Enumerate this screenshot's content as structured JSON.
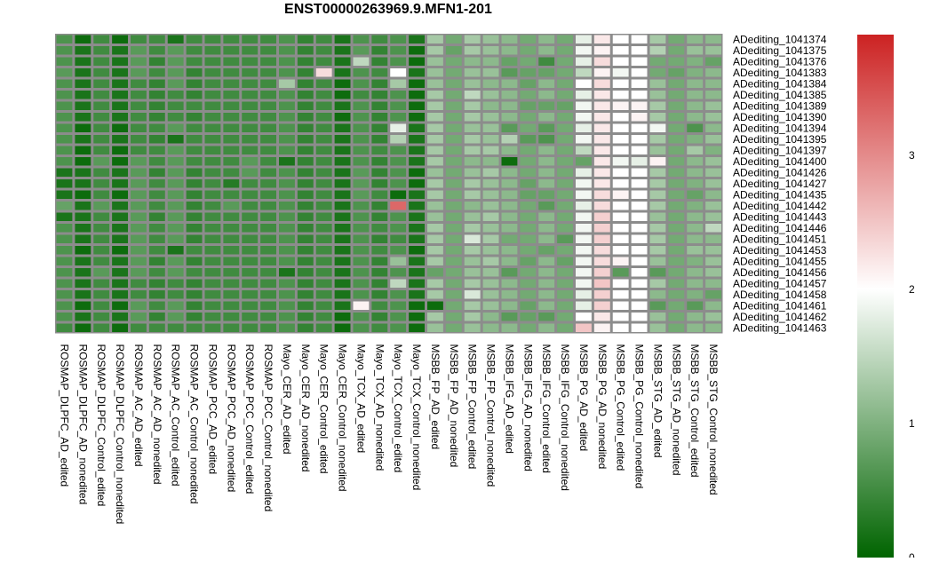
{
  "chart_data": {
    "type": "heatmap",
    "title": "ENST00000263969.9.MFN1-201",
    "columns": [
      "ROSMAP_DLPFC_AD_edited",
      "ROSMAP_DLPFC_AD_nonedited",
      "ROSMAP_DLPFC_Control_edited",
      "ROSMAP_DLPFC_Control_nonedited",
      "ROSMAP_AC_AD_edited",
      "ROSMAP_AC_AD_nonedited",
      "ROSMAP_AC_Control_edited",
      "ROSMAP_AC_Control_nonedited",
      "ROSMAP_PCC_AD_edited",
      "ROSMAP_PCC_AD_nonedited",
      "ROSMAP_PCC_Control_edited",
      "ROSMAP_PCC_Control_nonedited",
      "Mayo_CER_AD_edited",
      "Mayo_CER_AD_nonedited",
      "Mayo_CER_Control_edited",
      "Mayo_CER_Control_nonedited",
      "Mayo_TCX_AD_edited",
      "Mayo_TCX_AD_nonedited",
      "Mayo_TCX_Control_edited",
      "Mayo_TCX_Control_nonedited",
      "MSBB_FP_AD_edited",
      "MSBB_FP_AD_nonedited",
      "MSBB_FP_Control_edited",
      "MSBB_FP_Control_nonedited",
      "MSBB_IFG_AD_edited",
      "MSBB_IFG_AD_nonedited",
      "MSBB_IFG_Control_edited",
      "MSBB_IFG_Control_nonedited",
      "MSBB_PG_AD_edited",
      "MSBB_PG_AD_nonedited",
      "MSBB_PG_Control_edited",
      "MSBB_PG_Control_nonedited",
      "MSBB_STG_AD_edited",
      "MSBB_STG_AD_nonedited",
      "MSBB_STG_Control_edited",
      "MSBB_STG_Control_nonedited"
    ],
    "rows": [
      "ADediting_1041374",
      "ADediting_1041375",
      "ADediting_1041376",
      "ADediting_1041383",
      "ADediting_1041384",
      "ADediting_1041385",
      "ADediting_1041389",
      "ADediting_1041390",
      "ADediting_1041394",
      "ADediting_1041395",
      "ADediting_1041397",
      "ADediting_1041400",
      "ADediting_1041426",
      "ADediting_1041427",
      "ADediting_1041435",
      "ADediting_1041442",
      "ADediting_1041443",
      "ADediting_1041446",
      "ADediting_1041451",
      "ADediting_1041453",
      "ADediting_1041455",
      "ADediting_1041456",
      "ADediting_1041457",
      "ADediting_1041458",
      "ADediting_1041461",
      "ADediting_1041462",
      "ADediting_1041463"
    ],
    "values": [
      [
        0.6,
        0.1,
        0.5,
        0.1,
        0.5,
        0.5,
        0.2,
        0.5,
        0.5,
        0.5,
        0.5,
        0.5,
        0.6,
        0.4,
        0.5,
        0.2,
        0.6,
        0.5,
        0.6,
        0.2,
        1.3,
        0.9,
        1.3,
        1.2,
        1.1,
        0.9,
        1.1,
        0.9,
        1.8,
        2.2,
        2.0,
        2.0,
        1.3,
        0.9,
        1.1,
        1.1
      ],
      [
        0.6,
        0.2,
        0.5,
        0.2,
        0.7,
        0.5,
        0.7,
        0.5,
        0.5,
        0.5,
        0.5,
        0.5,
        0.6,
        0.4,
        0.5,
        0.2,
        0.7,
        0.4,
        0.6,
        0.1,
        1.3,
        0.8,
        1.3,
        1.2,
        1.1,
        0.9,
        1.1,
        0.9,
        1.9,
        2.1,
        2.0,
        2.0,
        1.4,
        0.9,
        1.2,
        1.2
      ],
      [
        0.6,
        0.2,
        0.5,
        0.2,
        0.7,
        0.4,
        0.7,
        0.5,
        0.5,
        0.5,
        0.5,
        0.5,
        0.6,
        0.4,
        0.5,
        0.2,
        1.5,
        0.4,
        0.6,
        0.1,
        1.2,
        0.9,
        1.1,
        1.1,
        0.8,
        0.9,
        0.5,
        0.9,
        1.8,
        2.3,
        2.0,
        2.0,
        0.9,
        0.9,
        1.0,
        0.8
      ],
      [
        0.7,
        0.2,
        0.5,
        0.2,
        0.7,
        0.5,
        0.7,
        0.4,
        0.5,
        0.5,
        0.5,
        0.5,
        0.6,
        0.4,
        2.3,
        0.2,
        0.6,
        0.5,
        2.0,
        0.2,
        1.2,
        0.9,
        1.2,
        1.2,
        0.7,
        0.8,
        0.8,
        0.9,
        1.5,
        2.1,
        1.9,
        2.0,
        0.9,
        0.8,
        1.0,
        1.1
      ],
      [
        0.6,
        0.2,
        0.5,
        0.2,
        0.5,
        0.4,
        0.7,
        0.4,
        0.5,
        0.5,
        0.5,
        0.5,
        1.3,
        0.4,
        0.5,
        0.1,
        0.6,
        0.4,
        1.3,
        0.1,
        1.2,
        0.9,
        1.2,
        1.1,
        1.1,
        0.8,
        1.1,
        0.9,
        2.0,
        2.3,
        2.0,
        2.0,
        1.2,
        0.9,
        1.1,
        1.1
      ],
      [
        0.6,
        0.2,
        0.5,
        0.2,
        0.5,
        0.4,
        0.5,
        0.4,
        0.5,
        0.5,
        0.5,
        0.5,
        0.6,
        0.4,
        0.5,
        0.1,
        0.5,
        0.4,
        0.6,
        0.1,
        1.3,
        0.9,
        1.5,
        1.2,
        1.1,
        0.9,
        1.1,
        0.9,
        1.8,
        2.2,
        2.0,
        2.0,
        1.2,
        0.9,
        1.1,
        1.1
      ],
      [
        0.6,
        0.2,
        0.5,
        0.2,
        0.5,
        0.4,
        0.5,
        0.5,
        0.5,
        0.5,
        0.5,
        0.5,
        0.6,
        0.4,
        0.5,
        0.2,
        0.6,
        0.4,
        0.6,
        0.1,
        1.3,
        0.9,
        1.3,
        1.1,
        1.1,
        0.8,
        0.8,
        0.8,
        1.9,
        2.2,
        2.1,
        2.1,
        1.3,
        0.9,
        1.1,
        1.2
      ],
      [
        0.6,
        0.2,
        0.5,
        0.2,
        0.5,
        0.4,
        0.5,
        0.4,
        0.5,
        0.5,
        0.5,
        0.5,
        0.6,
        0.4,
        0.5,
        0.1,
        0.6,
        0.4,
        0.6,
        0.1,
        1.3,
        0.9,
        1.3,
        1.2,
        1.1,
        0.9,
        1.1,
        0.9,
        1.9,
        2.2,
        2.0,
        2.1,
        1.3,
        0.9,
        1.1,
        1.2
      ],
      [
        0.6,
        0.1,
        0.5,
        0.1,
        0.5,
        0.5,
        0.7,
        0.5,
        0.5,
        0.5,
        0.5,
        0.5,
        0.6,
        0.4,
        0.5,
        0.2,
        0.6,
        0.4,
        1.8,
        0.2,
        1.3,
        0.9,
        1.2,
        1.2,
        0.7,
        0.9,
        0.7,
        0.9,
        1.8,
        2.2,
        2.0,
        2.0,
        1.9,
        0.9,
        0.6,
        1.1
      ],
      [
        0.6,
        0.2,
        0.5,
        0.2,
        0.5,
        0.4,
        0.2,
        0.5,
        0.5,
        0.5,
        0.5,
        0.5,
        0.6,
        0.4,
        0.5,
        0.2,
        0.6,
        0.4,
        1.4,
        0.2,
        1.3,
        0.9,
        1.3,
        1.2,
        1.4,
        0.7,
        0.6,
        0.9,
        1.9,
        2.2,
        2.0,
        2.0,
        1.3,
        0.9,
        1.0,
        1.2
      ],
      [
        0.6,
        0.1,
        0.5,
        0.1,
        0.5,
        0.5,
        0.7,
        0.5,
        0.5,
        0.5,
        0.5,
        0.5,
        0.6,
        0.4,
        0.5,
        0.2,
        0.6,
        0.5,
        0.6,
        0.2,
        1.3,
        0.9,
        1.3,
        1.3,
        1.1,
        0.9,
        1.1,
        0.9,
        1.5,
        2.2,
        2.0,
        2.0,
        1.2,
        0.9,
        1.3,
        1.0
      ],
      [
        0.6,
        0.1,
        0.7,
        0.1,
        0.7,
        0.5,
        0.7,
        0.5,
        0.5,
        0.5,
        0.7,
        0.5,
        0.2,
        0.4,
        0.5,
        0.2,
        0.6,
        0.4,
        0.6,
        0.2,
        1.3,
        0.9,
        1.1,
        1.1,
        0.1,
        0.9,
        1.1,
        0.9,
        0.8,
        2.2,
        1.9,
        1.8,
        2.1,
        0.9,
        1.1,
        1.2
      ],
      [
        0.2,
        0.2,
        0.5,
        0.2,
        0.7,
        0.4,
        0.7,
        0.4,
        0.5,
        0.5,
        0.7,
        0.5,
        0.6,
        0.4,
        0.5,
        0.2,
        0.7,
        0.4,
        0.6,
        0.1,
        1.2,
        0.9,
        1.2,
        1.3,
        1.1,
        0.9,
        1.1,
        0.9,
        1.8,
        2.2,
        2.0,
        2.0,
        1.3,
        0.9,
        1.1,
        1.2
      ],
      [
        0.2,
        0.2,
        0.5,
        0.2,
        0.7,
        0.5,
        0.7,
        0.4,
        0.5,
        0.3,
        0.5,
        0.5,
        0.6,
        0.4,
        0.5,
        0.2,
        0.7,
        0.4,
        0.6,
        0.1,
        1.3,
        0.9,
        1.3,
        1.2,
        1.1,
        0.8,
        1.1,
        0.9,
        1.9,
        2.2,
        2.0,
        2.0,
        1.3,
        0.9,
        1.0,
        1.2
      ],
      [
        0.2,
        0.1,
        0.5,
        0.1,
        0.7,
        0.5,
        0.7,
        0.4,
        0.5,
        0.5,
        0.5,
        0.5,
        0.6,
        0.4,
        0.5,
        0.2,
        0.7,
        0.5,
        0.1,
        0.2,
        1.3,
        0.9,
        1.3,
        1.2,
        1.1,
        0.8,
        0.8,
        0.9,
        1.9,
        2.3,
        2.1,
        2.0,
        1.3,
        0.9,
        0.8,
        1.1
      ],
      [
        0.8,
        0.2,
        0.7,
        0.2,
        0.7,
        0.5,
        0.7,
        0.4,
        0.5,
        0.7,
        0.5,
        0.5,
        0.6,
        0.4,
        0.5,
        0.2,
        0.6,
        0.4,
        3.3,
        0.2,
        1.2,
        0.9,
        1.1,
        1.2,
        1.1,
        0.9,
        0.7,
        0.9,
        1.8,
        2.3,
        2.0,
        2.0,
        1.3,
        0.9,
        1.0,
        1.2
      ],
      [
        0.2,
        0.2,
        0.5,
        0.2,
        0.7,
        0.4,
        0.7,
        0.4,
        0.5,
        0.5,
        0.5,
        0.5,
        0.6,
        0.4,
        0.5,
        0.2,
        0.6,
        0.4,
        0.6,
        0.2,
        1.2,
        0.9,
        1.2,
        1.3,
        1.1,
        0.9,
        1.1,
        0.9,
        1.9,
        2.4,
        2.0,
        2.0,
        1.2,
        0.9,
        1.1,
        1.2
      ],
      [
        0.6,
        0.2,
        0.5,
        0.2,
        0.7,
        0.5,
        0.7,
        0.4,
        0.5,
        0.5,
        0.5,
        0.5,
        0.6,
        0.4,
        0.5,
        0.2,
        0.6,
        0.5,
        0.6,
        0.2,
        1.3,
        0.9,
        1.3,
        1.2,
        1.1,
        0.9,
        1.1,
        0.9,
        1.9,
        2.4,
        2.0,
        2.0,
        1.3,
        0.9,
        1.1,
        1.5
      ],
      [
        0.6,
        0.2,
        0.5,
        0.2,
        0.7,
        0.5,
        0.7,
        0.4,
        0.5,
        0.5,
        0.5,
        0.5,
        0.6,
        0.4,
        0.5,
        0.2,
        0.6,
        0.4,
        0.5,
        0.2,
        1.3,
        0.9,
        1.7,
        1.3,
        0.9,
        0.9,
        1.1,
        0.7,
        1.9,
        2.4,
        2.0,
        2.0,
        1.3,
        0.9,
        1.1,
        1.1
      ],
      [
        0.6,
        0.1,
        0.5,
        0.1,
        0.7,
        0.5,
        0.2,
        0.5,
        0.5,
        0.5,
        0.5,
        0.5,
        0.6,
        0.4,
        0.5,
        0.2,
        0.6,
        0.5,
        0.6,
        0.1,
        1.3,
        0.9,
        1.3,
        1.2,
        1.1,
        0.9,
        0.8,
        0.9,
        1.9,
        2.3,
        2.0,
        2.0,
        1.3,
        0.9,
        1.2,
        1.2
      ],
      [
        0.6,
        0.2,
        0.5,
        0.2,
        0.7,
        0.4,
        0.7,
        0.4,
        0.5,
        0.5,
        0.5,
        0.5,
        0.6,
        0.4,
        0.5,
        0.2,
        0.6,
        0.4,
        1.2,
        0.2,
        1.3,
        0.9,
        1.2,
        1.3,
        1.1,
        0.8,
        1.1,
        0.8,
        1.9,
        2.3,
        2.1,
        2.0,
        1.2,
        0.9,
        1.0,
        1.2
      ],
      [
        0.6,
        0.2,
        0.7,
        0.2,
        0.7,
        0.5,
        0.7,
        0.5,
        0.5,
        0.5,
        0.5,
        0.5,
        0.2,
        0.4,
        0.5,
        0.2,
        0.6,
        0.4,
        0.6,
        0.2,
        0.8,
        0.9,
        1.2,
        1.2,
        0.7,
        0.9,
        1.1,
        0.9,
        1.9,
        2.4,
        0.7,
        2.0,
        0.7,
        0.9,
        1.1,
        1.2
      ],
      [
        0.6,
        0.2,
        0.5,
        0.2,
        0.5,
        0.4,
        0.5,
        0.4,
        0.5,
        0.5,
        0.5,
        0.5,
        0.6,
        0.4,
        0.5,
        0.2,
        0.6,
        0.4,
        1.5,
        0.2,
        1.3,
        0.9,
        1.3,
        1.2,
        1.1,
        0.9,
        1.1,
        0.9,
        1.9,
        2.5,
        2.0,
        2.0,
        1.3,
        0.9,
        1.1,
        1.1
      ],
      [
        0.6,
        0.2,
        0.5,
        0.2,
        0.5,
        0.4,
        0.5,
        0.4,
        0.5,
        0.5,
        0.5,
        0.5,
        0.6,
        0.4,
        0.5,
        0.2,
        0.6,
        0.4,
        0.6,
        0.2,
        1.3,
        0.9,
        1.7,
        1.2,
        1.1,
        0.9,
        1.1,
        0.9,
        1.8,
        2.4,
        2.0,
        2.0,
        1.1,
        0.9,
        1.0,
        0.8
      ],
      [
        0.6,
        0.1,
        0.5,
        0.1,
        0.7,
        0.5,
        0.7,
        0.4,
        0.5,
        0.5,
        0.5,
        0.5,
        0.6,
        0.4,
        0.5,
        0.2,
        2.1,
        0.5,
        0.6,
        0.1,
        0.1,
        0.9,
        1.3,
        1.2,
        1.1,
        0.8,
        1.1,
        0.9,
        1.8,
        2.4,
        2.0,
        2.0,
        0.7,
        0.9,
        0.7,
        1.1
      ],
      [
        0.6,
        0.2,
        0.5,
        0.2,
        0.7,
        0.4,
        0.7,
        0.4,
        0.5,
        0.5,
        0.5,
        0.5,
        0.6,
        0.4,
        0.5,
        0.1,
        0.6,
        0.4,
        0.6,
        0.1,
        1.3,
        0.9,
        1.3,
        1.1,
        0.7,
        0.8,
        0.7,
        0.9,
        2.0,
        2.2,
        2.0,
        2.0,
        1.2,
        0.9,
        1.1,
        1.2
      ],
      [
        0.5,
        0.1,
        0.5,
        0.1,
        0.5,
        0.5,
        0.5,
        0.5,
        0.5,
        0.5,
        0.5,
        0.5,
        0.6,
        0.4,
        0.5,
        0.1,
        0.6,
        0.5,
        0.6,
        0.1,
        1.2,
        0.9,
        1.2,
        1.1,
        1.1,
        0.9,
        1.1,
        0.9,
        2.5,
        2.1,
        2.0,
        2.0,
        1.2,
        0.9,
        1.1,
        1.1
      ]
    ],
    "colorbar": {
      "ticks": [
        "0",
        "1",
        "2",
        "3"
      ],
      "range": [
        0,
        3.9
      ],
      "low_color": "#006400",
      "mid_color": "#ffffff",
      "mid_value": 2,
      "high_color": "#cc2222"
    }
  }
}
